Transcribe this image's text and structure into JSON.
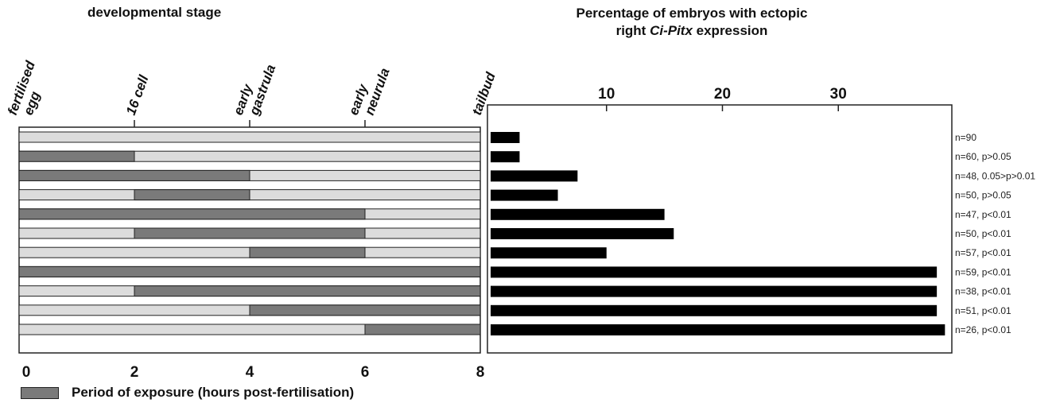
{
  "chart_data": [
    {
      "type": "gantt",
      "title": "developmental stage",
      "stage_labels": [
        {
          "lines": [
            "fertilised",
            "egg"
          ],
          "x": 0
        },
        {
          "lines": [
            "16 cell"
          ],
          "x": 2
        },
        {
          "lines": [
            "early",
            "gastrula"
          ],
          "x": 4
        },
        {
          "lines": [
            "early",
            "neurula"
          ],
          "x": 6
        },
        {
          "lines": [
            "tailbud"
          ],
          "x": 8
        }
      ],
      "xlim": [
        0,
        8
      ],
      "xticks": [
        "0",
        "2",
        "4",
        "6",
        "8"
      ],
      "xlabel": "Period of exposure (hours post-fertilisation)",
      "rows": [
        {
          "exposure": null
        },
        {
          "exposure": [
            0,
            2
          ]
        },
        {
          "exposure": [
            0,
            4
          ]
        },
        {
          "exposure": [
            2,
            4
          ]
        },
        {
          "exposure": [
            0,
            6
          ]
        },
        {
          "exposure": [
            2,
            6
          ]
        },
        {
          "exposure": [
            4,
            6
          ]
        },
        {
          "exposure": [
            0,
            8
          ]
        },
        {
          "exposure": [
            2,
            8
          ]
        },
        {
          "exposure": [
            4,
            8
          ]
        },
        {
          "exposure": [
            6,
            8
          ]
        }
      ],
      "colors": {
        "exposed": "#7a7a7a",
        "unexposed": "#dcdcdc"
      }
    },
    {
      "type": "bar",
      "orientation": "horizontal",
      "title_parts": [
        "Percentage of embryos with ectopic",
        "right ",
        "Ci-Pitx",
        " expression"
      ],
      "xticks": [
        "10",
        "20",
        "30"
      ],
      "xlim": [
        0,
        40
      ],
      "values": [
        2.5,
        2.5,
        7.5,
        5.8,
        15,
        15.8,
        10,
        38.5,
        38.5,
        38.5,
        39.2
      ],
      "annotations": [
        "n=90",
        "n=60, p>0.05",
        "n=48, 0.05>p>0.01",
        "n=50, p>0.05",
        "n=47, p<0.01",
        "n=50, p<0.01",
        "n=57, p<0.01",
        "n=59, p<0.01",
        "n=38, p<0.01",
        "n=51, p<0.01",
        "n=26, p<0.01"
      ],
      "color": "#000000"
    }
  ]
}
